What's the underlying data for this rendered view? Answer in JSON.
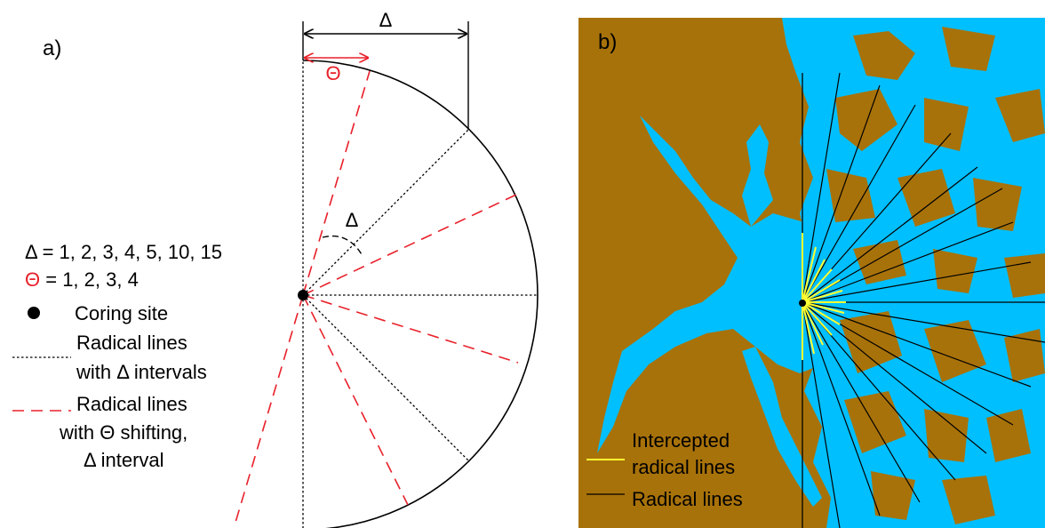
{
  "panel_a": {
    "label": "a)",
    "delta_top": "Δ",
    "theta_top": "Θ",
    "delta_angle": "Δ",
    "legend": {
      "delta_values": "Δ = 1, 2, 3, 4, 5, 10, 15",
      "theta_symbol": "Θ",
      "theta_values": " = 1, 2, 3, 4",
      "coring_site": "Coring site",
      "dotted_line1": "Radical lines",
      "dotted_line2": "with Δ intervals",
      "dashed_line1": "Radical lines",
      "dashed_line2": "with Θ shifting,",
      "dashed_line3": "Δ interval"
    },
    "colors": {
      "red": "#e8202a",
      "black": "#000000"
    }
  },
  "panel_b": {
    "label": "b)",
    "legend": {
      "intercepted_line1": "Intercepted",
      "intercepted_line2": "radical lines",
      "radical": "Radical lines"
    },
    "colors": {
      "water": "#00bfff",
      "land": "#a8720a",
      "intercepted": "#ffff33",
      "radial": "#000000"
    }
  }
}
